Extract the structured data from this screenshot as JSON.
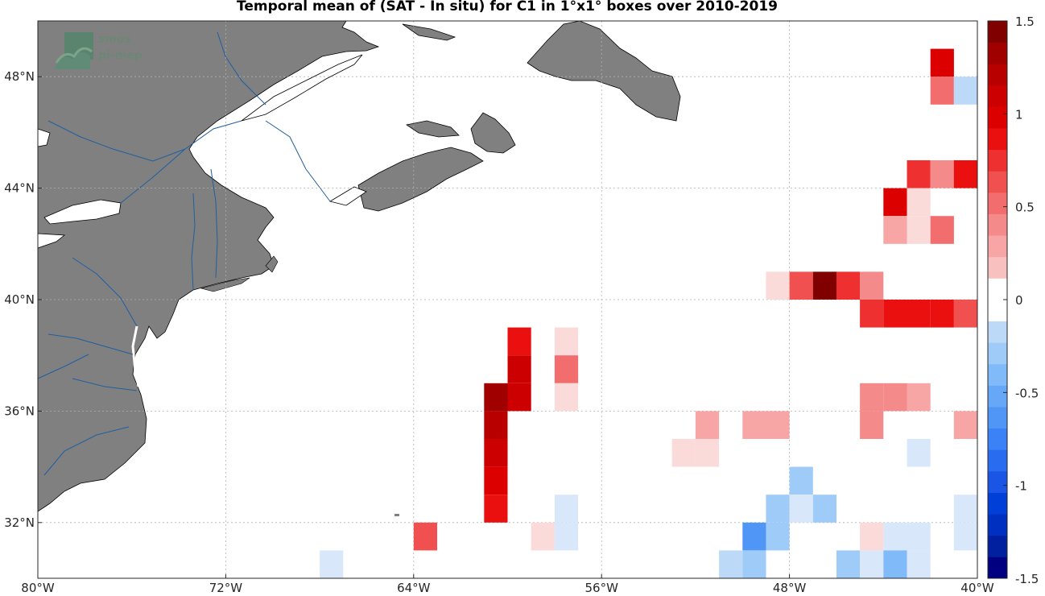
{
  "title": "Temporal mean of (SAT - In situ) for C1 in 1°x1° boxes over 2010-2019",
  "watermark": {
    "line1": "smos",
    "line2": "pi-mep"
  },
  "map": {
    "lon_range": [
      -80,
      -40
    ],
    "lat_range": [
      30,
      50
    ],
    "grid": true,
    "land_color": "#808080",
    "x_ticks": [
      "80°W",
      "72°W",
      "64°W",
      "56°W",
      "48°W",
      "40°W"
    ],
    "x_tick_values": [
      -80,
      -72,
      -64,
      -56,
      -48,
      -40
    ],
    "y_ticks": [
      "48°N",
      "44°N",
      "40°N",
      "36°N",
      "32°N"
    ],
    "y_tick_values": [
      48,
      44,
      40,
      36,
      32
    ]
  },
  "colorbar": {
    "range": [
      -1.5,
      1.5
    ],
    "ticks": [
      "1.5",
      "1",
      "0.5",
      "0",
      "-0.5",
      "-1",
      "-1.5"
    ],
    "tick_values": [
      1.5,
      1,
      0.5,
      0,
      -0.5,
      -1,
      -1.5
    ]
  },
  "chart_data": {
    "type": "heatmap",
    "title": "Temporal mean of (SAT - In situ) for C1 in 1°x1° boxes over 2010-2019",
    "xlabel": "",
    "ylabel": "",
    "xlim": [
      -80,
      -40
    ],
    "ylim": [
      30,
      50
    ],
    "clim": [
      -1.5,
      1.5
    ],
    "cell_size_deg": 1,
    "cells": [
      {
        "lon": -41,
        "lat": 48,
        "value": 1.0
      },
      {
        "lon": -41,
        "lat": 47,
        "value": 0.5
      },
      {
        "lon": -40,
        "lat": 47,
        "value": -0.2
      },
      {
        "lon": -42,
        "lat": 44,
        "value": 0.8
      },
      {
        "lon": -41,
        "lat": 44,
        "value": 0.4
      },
      {
        "lon": -40,
        "lat": 44,
        "value": 0.9
      },
      {
        "lon": -43,
        "lat": 43,
        "value": 1.0
      },
      {
        "lon": -42,
        "lat": 43,
        "value": 0.1
      },
      {
        "lon": -43,
        "lat": 42,
        "value": 0.3
      },
      {
        "lon": -42,
        "lat": 42,
        "value": 0.1
      },
      {
        "lon": -41,
        "lat": 42,
        "value": 0.5
      },
      {
        "lon": -48,
        "lat": 40,
        "value": 0.1
      },
      {
        "lon": -47,
        "lat": 40,
        "value": 0.6
      },
      {
        "lon": -46,
        "lat": 40,
        "value": 1.5
      },
      {
        "lon": -45,
        "lat": 40,
        "value": 0.8
      },
      {
        "lon": -44,
        "lat": 40,
        "value": 0.4
      },
      {
        "lon": -44,
        "lat": 39,
        "value": 0.7
      },
      {
        "lon": -43,
        "lat": 39,
        "value": 0.9
      },
      {
        "lon": -42,
        "lat": 39,
        "value": 0.9
      },
      {
        "lon": -41,
        "lat": 39,
        "value": 0.9
      },
      {
        "lon": -40,
        "lat": 39,
        "value": 0.6
      },
      {
        "lon": -59,
        "lat": 38,
        "value": 0.9
      },
      {
        "lon": -59,
        "lat": 37,
        "value": 1.1
      },
      {
        "lon": -59,
        "lat": 36,
        "value": 1.1
      },
      {
        "lon": -60,
        "lat": 36,
        "value": 1.3
      },
      {
        "lon": -60,
        "lat": 35,
        "value": 1.2
      },
      {
        "lon": -60,
        "lat": 34,
        "value": 1.1
      },
      {
        "lon": -60,
        "lat": 33,
        "value": 1.0
      },
      {
        "lon": -60,
        "lat": 32,
        "value": 0.9
      },
      {
        "lon": -57,
        "lat": 38,
        "value": 0.1
      },
      {
        "lon": -57,
        "lat": 37,
        "value": 0.5
      },
      {
        "lon": -57,
        "lat": 36,
        "value": 0.1
      },
      {
        "lon": -44,
        "lat": 36,
        "value": 0.4
      },
      {
        "lon": -43,
        "lat": 36,
        "value": 0.4
      },
      {
        "lon": -42,
        "lat": 36,
        "value": 0.3
      },
      {
        "lon": -44,
        "lat": 35,
        "value": 0.4
      },
      {
        "lon": -40,
        "lat": 35,
        "value": 0.3
      },
      {
        "lon": -51,
        "lat": 35,
        "value": 0.3
      },
      {
        "lon": -49,
        "lat": 35,
        "value": 0.3
      },
      {
        "lon": -48,
        "lat": 35,
        "value": 0.3
      },
      {
        "lon": -52,
        "lat": 34,
        "value": 0.1
      },
      {
        "lon": -51,
        "lat": 34,
        "value": 0.1
      },
      {
        "lon": -42,
        "lat": 34,
        "value": -0.1
      },
      {
        "lon": -47,
        "lat": 33,
        "value": -0.3
      },
      {
        "lon": -57,
        "lat": 32,
        "value": -0.1
      },
      {
        "lon": -48,
        "lat": 32,
        "value": -0.3
      },
      {
        "lon": -47,
        "lat": 32,
        "value": -0.1
      },
      {
        "lon": -46,
        "lat": 32,
        "value": -0.3
      },
      {
        "lon": -40,
        "lat": 32,
        "value": -0.1
      },
      {
        "lon": -63,
        "lat": 31,
        "value": 0.6
      },
      {
        "lon": -58,
        "lat": 31,
        "value": 0.1
      },
      {
        "lon": -57,
        "lat": 31,
        "value": -0.1
      },
      {
        "lon": -49,
        "lat": 31,
        "value": -0.6
      },
      {
        "lon": -48,
        "lat": 31,
        "value": -0.3
      },
      {
        "lon": -44,
        "lat": 31,
        "value": 0.1
      },
      {
        "lon": -43,
        "lat": 31,
        "value": -0.1
      },
      {
        "lon": -42,
        "lat": 31,
        "value": -0.1
      },
      {
        "lon": -40,
        "lat": 31,
        "value": -0.1
      },
      {
        "lon": -67,
        "lat": 30,
        "value": -0.1
      },
      {
        "lon": -50,
        "lat": 30,
        "value": -0.2
      },
      {
        "lon": -49,
        "lat": 30,
        "value": -0.3
      },
      {
        "lon": -45,
        "lat": 30,
        "value": -0.3
      },
      {
        "lon": -44,
        "lat": 30,
        "value": -0.1
      },
      {
        "lon": -43,
        "lat": 30,
        "value": -0.4
      },
      {
        "lon": -42,
        "lat": 30,
        "value": -0.1
      }
    ]
  }
}
